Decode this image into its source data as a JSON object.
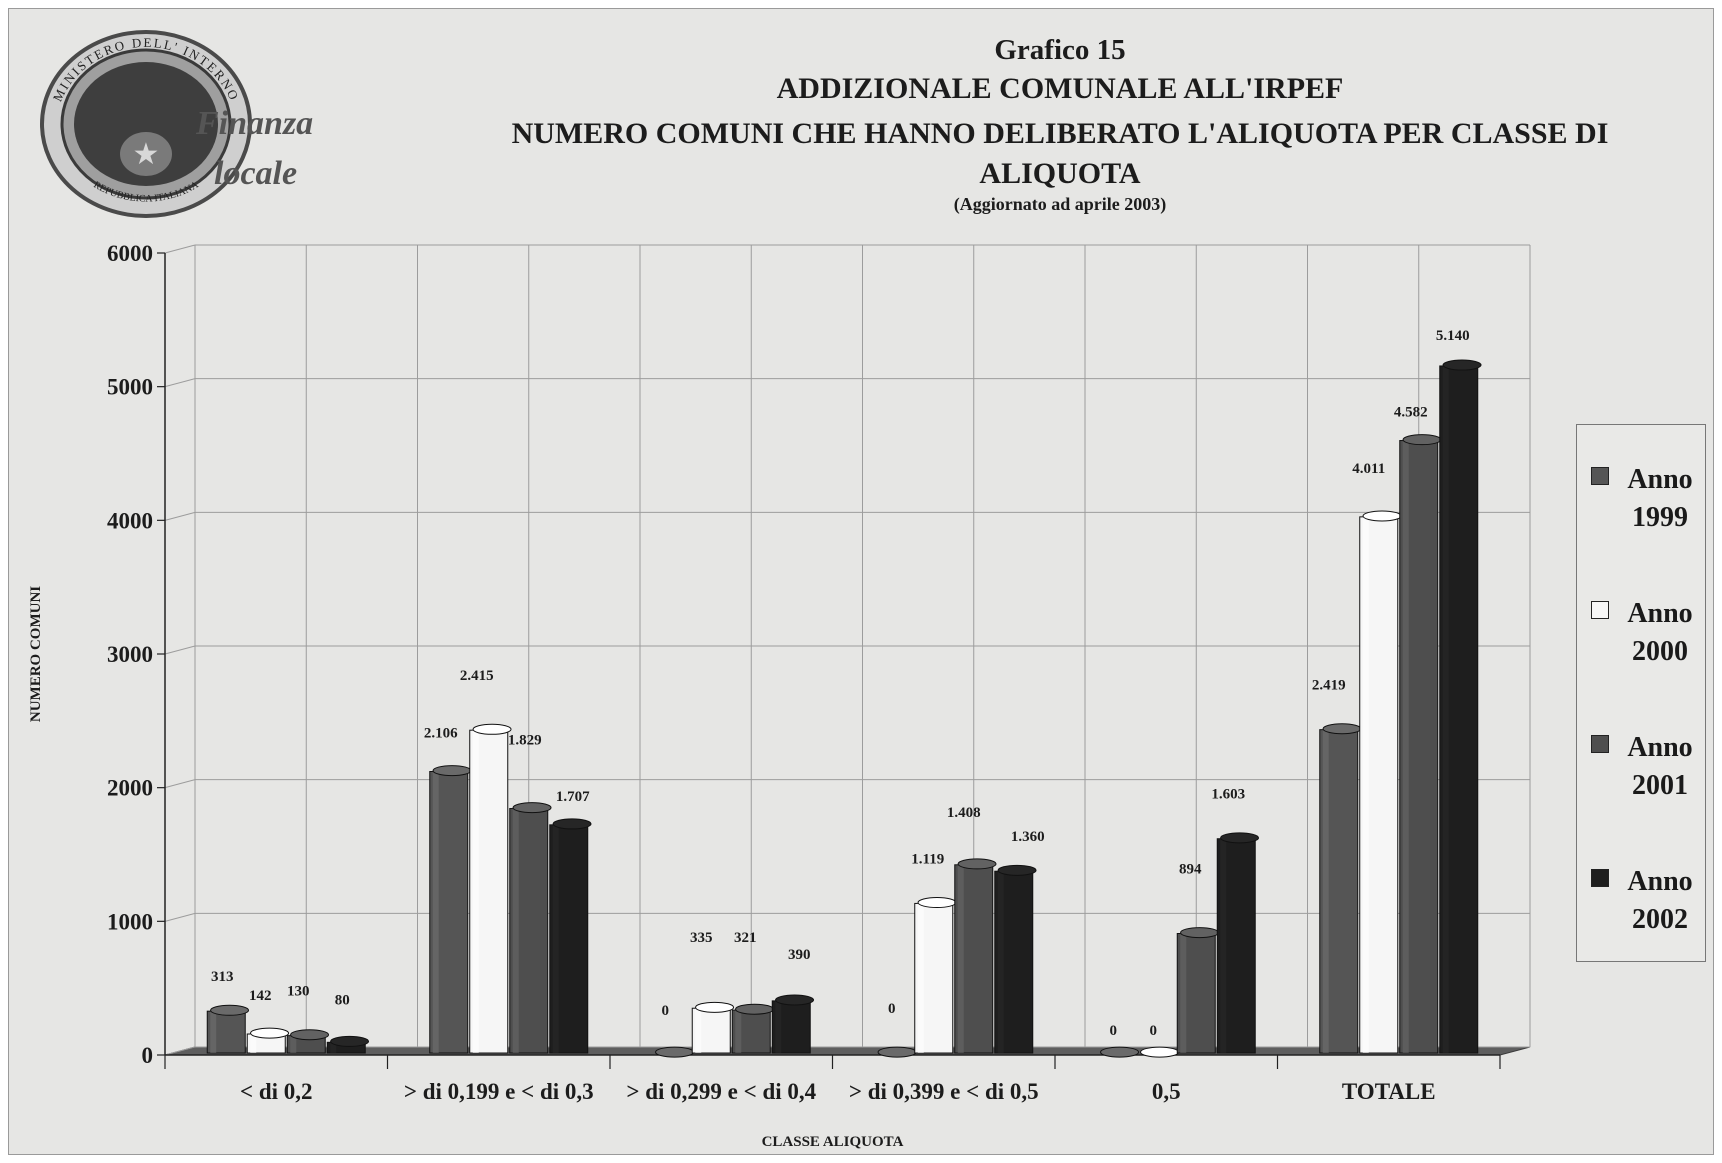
{
  "header": {
    "chart_number": "Grafico 15",
    "title_line1": "ADDIZIONALE COMUNALE ALL'IRPEF",
    "title_line2": "NUMERO COMUNI CHE HANNO DELIBERATO L'ALIQUOTA PER CLASSE DI ALIQUOTA",
    "subtitle": "(Aggiornato ad aprile 2003)"
  },
  "logo": {
    "seal_top_text": "MINISTERO DELL' INTERNO",
    "seal_bottom_text": "REPUBBLICA ITALIANA",
    "script_text_1": "Finanza",
    "script_text_2": "locale"
  },
  "colors": {
    "anno_1999": "#555555",
    "anno_2000": "#f6f6f6",
    "anno_2001": "#4e4e4e",
    "anno_2002": "#1e1e1e",
    "background": "#e6e6e4"
  },
  "chart_data": {
    "type": "bar",
    "title": "ADDIZIONALE COMUNALE ALL'IRPEF - NUMERO COMUNI CHE HANNO DELIBERATO L'ALIQUOTA PER CLASSE DI ALIQUOTA",
    "subtitle": "(Aggiornato ad aprile 2003)",
    "xlabel": "CLASSE ALIQUOTA",
    "ylabel": "NUMERO COMUNI",
    "ylim": [
      0,
      6000
    ],
    "yticks": [
      0,
      1000,
      2000,
      3000,
      4000,
      5000,
      6000
    ],
    "grid": true,
    "legend_position": "right",
    "categories": [
      "< di 0,2",
      "> di 0,199 e < di 0,3",
      "> di 0,299 e < di 0,4",
      "> di 0,399 e < di 0,5",
      "0,5",
      "TOTALE"
    ],
    "series": [
      {
        "name": "Anno 1999",
        "values": [
          313,
          2106,
          0,
          0,
          0,
          2419
        ],
        "labels": [
          "313",
          "2.106",
          "0",
          "0",
          "0",
          "2.419"
        ]
      },
      {
        "name": "Anno 2000",
        "values": [
          142,
          2415,
          335,
          1119,
          0,
          4011
        ],
        "labels": [
          "142",
          "2.415",
          "335",
          "1.119",
          "0",
          "4.011"
        ]
      },
      {
        "name": "Anno 2001",
        "values": [
          130,
          1829,
          321,
          1408,
          894,
          4582
        ],
        "labels": [
          "130",
          "1.829",
          "321",
          "1.408",
          "894",
          "4.582"
        ]
      },
      {
        "name": "Anno 2002",
        "values": [
          80,
          1707,
          390,
          1360,
          1603,
          5140
        ],
        "labels": [
          "80",
          "1.707",
          "390",
          "1.360",
          "1.603",
          "5.140"
        ]
      }
    ]
  },
  "legend": [
    {
      "line1": "Anno",
      "line2": "1999",
      "color_key": "anno_1999"
    },
    {
      "line1": "Anno",
      "line2": "2000",
      "color_key": "anno_2000"
    },
    {
      "line1": "Anno",
      "line2": "2001",
      "color_key": "anno_2001"
    },
    {
      "line1": "Anno",
      "line2": "2002",
      "color_key": "anno_2002"
    }
  ]
}
